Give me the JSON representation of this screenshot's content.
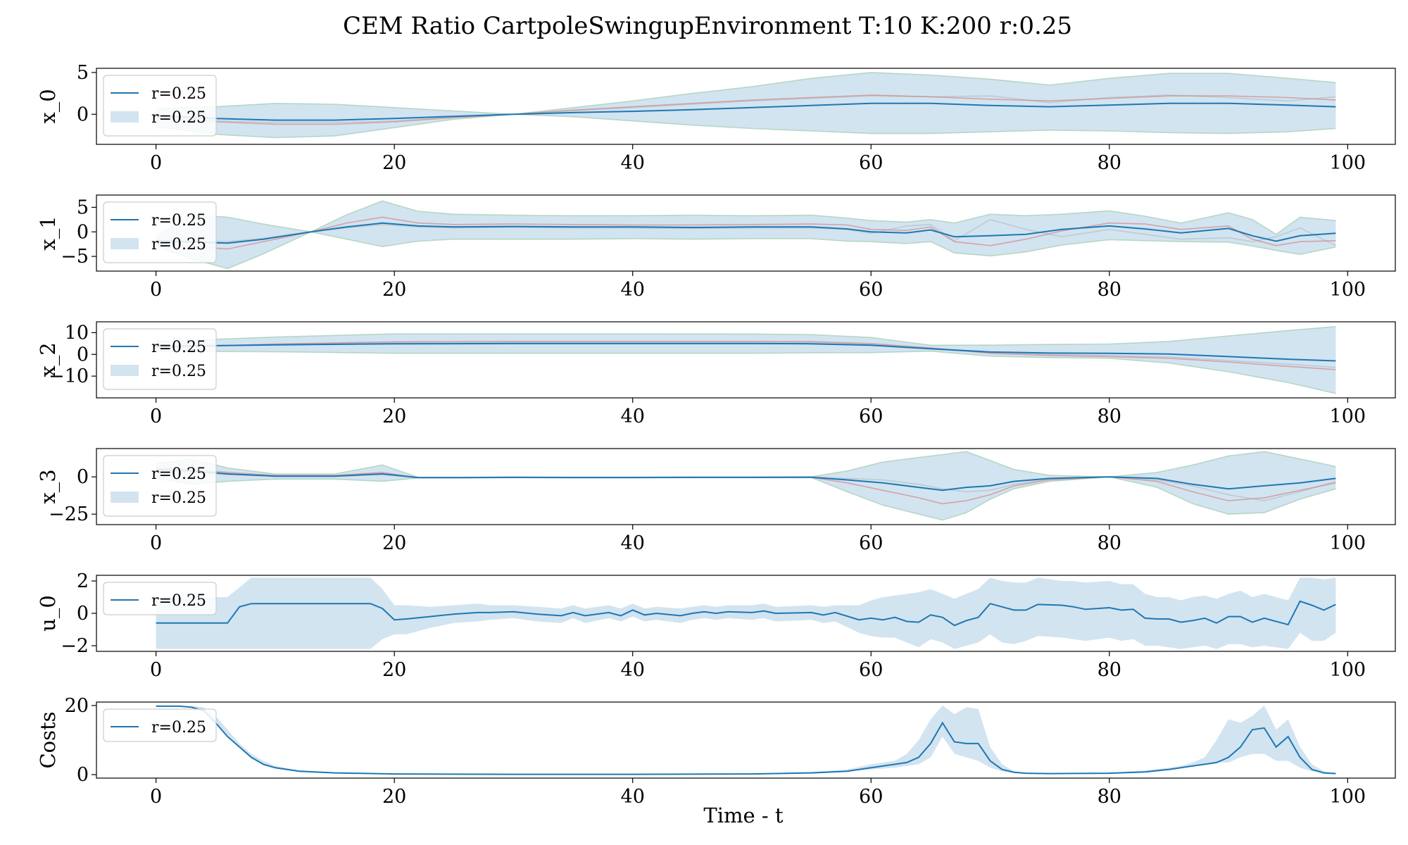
{
  "figure": {
    "title": "CEM Ratio CartpoleSwingupEnvironment T:10 K:200 r:0.25",
    "xlabel": "Time - t"
  },
  "colors": {
    "mean_line": "#1f77b4",
    "band_fill": "#1f77b4",
    "band_edge": "#8fc39a",
    "sample_line": "#d62728",
    "grey_line": "#9a9a9a"
  },
  "chart_data": [
    {
      "type": "line",
      "ylabel": "x_0",
      "xlim": [
        -5,
        104
      ],
      "ylim": [
        -3.6,
        5.5
      ],
      "x_ticks": [
        0,
        20,
        40,
        60,
        80,
        100
      ],
      "y_ticks": [
        -0.0001,
        0,
        5
      ],
      "y_tick_labels": [
        "",
        "0",
        "5"
      ],
      "legend": {
        "position": "upper-left",
        "entries": [
          "r=0.25",
          "r=0.25"
        ]
      },
      "x": [
        0,
        5,
        10,
        15,
        20,
        25,
        30,
        35,
        40,
        45,
        50,
        55,
        60,
        65,
        70,
        75,
        80,
        85,
        90,
        95,
        99
      ],
      "mean": [
        -0.2,
        -0.5,
        -0.7,
        -0.7,
        -0.5,
        -0.25,
        0,
        0.2,
        0.35,
        0.55,
        0.8,
        1.05,
        1.3,
        1.3,
        1.05,
        0.9,
        1.1,
        1.3,
        1.3,
        1.1,
        0.9
      ],
      "lower": [
        -1.5,
        -2.4,
        -2.8,
        -2.6,
        -1.6,
        -0.6,
        0,
        -0.3,
        -0.8,
        -1.3,
        -1.7,
        -2.0,
        -2.3,
        -2.3,
        -2.1,
        -1.9,
        -2.0,
        -2.2,
        -2.3,
        -2.1,
        -1.7
      ],
      "upper": [
        0.7,
        0.9,
        1.3,
        1.2,
        0.8,
        0.4,
        0,
        0.8,
        1.6,
        2.5,
        3.3,
        4.3,
        5.0,
        4.7,
        4.2,
        3.5,
        4.3,
        4.9,
        4.9,
        4.3,
        3.8
      ],
      "extra_lines": [
        {
          "color": "sample",
          "values": [
            -0.5,
            -0.9,
            -1.2,
            -1.2,
            -0.9,
            -0.4,
            0,
            0.5,
            0.9,
            1.3,
            1.7,
            2.0,
            2.3,
            2.1,
            1.8,
            1.6,
            1.9,
            2.2,
            2.2,
            2.0,
            1.7
          ]
        },
        {
          "color": "grey",
          "values": [
            -0.4,
            -0.8,
            -1.0,
            -1.0,
            -0.8,
            -0.35,
            0,
            0.4,
            0.8,
            1.2,
            1.6,
            1.9,
            2.2,
            2.1,
            2.2,
            1.4,
            2.0,
            2.3,
            2.0,
            1.6,
            2.1
          ]
        }
      ]
    },
    {
      "type": "line",
      "ylabel": "x_1",
      "xlim": [
        -5,
        104
      ],
      "ylim": [
        -8,
        7.5
      ],
      "x_ticks": [
        0,
        20,
        40,
        60,
        80,
        100
      ],
      "y_ticks": [
        -5,
        0,
        5
      ],
      "y_tick_labels": [
        "−5",
        "0",
        "5"
      ],
      "legend": {
        "position": "upper-left",
        "entries": [
          "r=0.25",
          "r=0.25"
        ]
      },
      "x": [
        0,
        3,
        6,
        9,
        13,
        16,
        19,
        22,
        25,
        30,
        35,
        40,
        45,
        50,
        55,
        58,
        60,
        63,
        65,
        67,
        70,
        73,
        76,
        80,
        83,
        86,
        90,
        92,
        94,
        96,
        99
      ],
      "mean": [
        -1.8,
        -2.1,
        -2.3,
        -1.5,
        0,
        1.0,
        1.8,
        1.2,
        1.0,
        1.1,
        1.0,
        1.0,
        0.9,
        1.0,
        1.0,
        0.6,
        0,
        -0.2,
        0.4,
        -1.0,
        -0.8,
        -0.5,
        0.5,
        1.2,
        0.6,
        -0.2,
        0.7,
        -0.8,
        -1.9,
        -0.8,
        -0.3
      ],
      "lower": [
        -3.0,
        -5.5,
        -7.5,
        -4.5,
        0,
        -1.5,
        -3.0,
        -1.9,
        -1.5,
        -1.5,
        -1.5,
        -1.4,
        -1.5,
        -1.4,
        -1.4,
        -1.9,
        -2.0,
        -2.4,
        -2.0,
        -4.3,
        -4.9,
        -4.1,
        -2.7,
        -1.6,
        -1.8,
        -2.0,
        -2.1,
        -2.9,
        -3.8,
        -4.6,
        -3.1
      ],
      "upper": [
        -0.8,
        3.5,
        3.0,
        1.6,
        0,
        3.5,
        6.3,
        4.2,
        3.6,
        3.4,
        3.3,
        3.3,
        3.4,
        3.3,
        3.4,
        2.8,
        2.3,
        2.0,
        2.5,
        1.8,
        3.6,
        3.3,
        3.6,
        4.3,
        3.2,
        1.8,
        3.9,
        2.5,
        -0.5,
        3.0,
        2.3
      ],
      "extra_lines": [
        {
          "color": "sample",
          "values": [
            -2.5,
            -3.0,
            -3.5,
            -2.0,
            0,
            1.8,
            3.0,
            1.8,
            1.5,
            1.6,
            1.5,
            1.4,
            1.4,
            1.5,
            1.6,
            1.4,
            0.5,
            0.3,
            1.0,
            -2.0,
            -2.8,
            -1.5,
            0.2,
            1.8,
            1.6,
            0.5,
            1.2,
            -1.5,
            -2.8,
            -2.0,
            -1.8
          ]
        },
        {
          "color": "grey",
          "values": [
            -1.5,
            -1.8,
            -2.0,
            -1.3,
            0,
            0.8,
            1.5,
            1.0,
            0.8,
            0.9,
            0.8,
            0.8,
            0.7,
            0.8,
            0.8,
            0.5,
            -0.3,
            1.2,
            1.5,
            -1.8,
            2.5,
            0.5,
            -1.0,
            0.5,
            -0.5,
            -1.5,
            -1.2,
            -2.0,
            -1.0,
            0.8,
            -2.8
          ]
        }
      ]
    },
    {
      "type": "line",
      "ylabel": "x_2",
      "xlim": [
        -5,
        104
      ],
      "ylim": [
        -20,
        15
      ],
      "x_ticks": [
        0,
        20,
        40,
        60,
        80,
        100
      ],
      "y_ticks": [
        -10,
        0,
        10
      ],
      "y_tick_labels": [
        "−10",
        "0",
        "10"
      ],
      "legend": {
        "position": "upper-left",
        "entries": [
          "r=0.25",
          "r=0.25"
        ]
      },
      "x": [
        0,
        10,
        20,
        30,
        40,
        50,
        55,
        60,
        65,
        70,
        75,
        80,
        85,
        90,
        95,
        99
      ],
      "mean": [
        3.7,
        4.4,
        4.9,
        5.0,
        5.0,
        5.0,
        4.9,
        4.2,
        2.6,
        1.1,
        0.6,
        0.5,
        0.2,
        -1.0,
        -2.2,
        -3.0
      ],
      "lower": [
        1.5,
        1.2,
        0.5,
        0.5,
        0.5,
        0.5,
        0.7,
        0.8,
        1.5,
        -0.8,
        -1.5,
        -1.8,
        -4.0,
        -8.0,
        -13.0,
        -18.0
      ],
      "upper": [
        6.0,
        8.0,
        9.5,
        9.5,
        9.5,
        9.4,
        9.1,
        7.8,
        4.2,
        4.3,
        4.6,
        4.8,
        6.0,
        8.5,
        11.0,
        12.8
      ],
      "extra_lines": [
        {
          "color": "sample",
          "values": [
            3.0,
            4.8,
            5.8,
            6.0,
            6.0,
            6.0,
            5.9,
            5.0,
            3.0,
            0.5,
            -0.5,
            -1.0,
            -1.8,
            -3.5,
            -5.5,
            -7.0
          ]
        },
        {
          "color": "grey",
          "values": [
            3.2,
            4.5,
            5.3,
            5.5,
            5.5,
            5.5,
            5.4,
            4.6,
            2.8,
            0.8,
            0.0,
            -0.5,
            -1.2,
            -2.8,
            -4.5,
            -6.0
          ]
        }
      ]
    },
    {
      "type": "line",
      "ylabel": "x_3",
      "xlim": [
        -5,
        104
      ],
      "ylim": [
        -32,
        19
      ],
      "x_ticks": [
        0,
        20,
        40,
        60,
        80,
        100
      ],
      "y_ticks": [
        -25,
        0
      ],
      "y_tick_labels": [
        "−25",
        "0"
      ],
      "legend": {
        "position": "upper-left",
        "entries": [
          "r=0.25",
          "r=0.25"
        ]
      },
      "x": [
        0,
        3,
        6,
        10,
        15,
        19,
        22,
        25,
        30,
        35,
        40,
        45,
        50,
        55,
        58,
        61,
        64,
        66,
        68,
        70,
        72,
        75,
        80,
        84,
        87,
        90,
        93,
        96,
        99
      ],
      "mean": [
        5,
        4,
        2,
        0.5,
        0.5,
        2,
        -0.5,
        -0.5,
        -0.3,
        -0.4,
        -0.4,
        -0.3,
        -0.3,
        -0.2,
        -2,
        -4,
        -7,
        -9,
        -7,
        -6,
        -3,
        -1,
        0,
        -1,
        -5,
        -8,
        -6,
        -4,
        -1
      ],
      "lower": [
        -1,
        -5,
        -3,
        -1.5,
        -1.5,
        -3,
        -0.7,
        -0.7,
        -0.5,
        -0.6,
        -0.6,
        -0.5,
        -0.5,
        -0.5,
        -10,
        -19,
        -25,
        -29,
        -24,
        -15,
        -8,
        -3,
        0,
        -7,
        -18,
        -25,
        -24,
        -15,
        -8
      ],
      "upper": [
        9,
        12,
        6,
        2,
        2,
        8,
        -0.3,
        -0.3,
        -0.1,
        -0.2,
        -0.2,
        -0.1,
        -0.1,
        0.1,
        4,
        10,
        13,
        15,
        17,
        11,
        5,
        1,
        0,
        3,
        8,
        14,
        17,
        12,
        7
      ],
      "extra_lines": [
        {
          "color": "sample",
          "values": [
            6,
            5,
            3,
            1,
            1,
            3,
            -0.6,
            -0.6,
            -0.4,
            -0.5,
            -0.5,
            -0.4,
            -0.4,
            -0.3,
            -4,
            -9,
            -14,
            -18,
            -16,
            -12,
            -6,
            -2,
            0,
            -3,
            -10,
            -16,
            -14,
            -9,
            -4
          ]
        },
        {
          "color": "grey",
          "values": [
            4,
            3,
            1.5,
            0.5,
            0.5,
            1.5,
            -0.4,
            -0.4,
            -0.2,
            -0.3,
            -0.3,
            -0.2,
            -0.2,
            -0.1,
            -1,
            -2,
            -5,
            -8,
            -10,
            -9,
            -5,
            -1.5,
            0,
            -2,
            -6,
            -12,
            -16,
            -10,
            -3
          ]
        }
      ]
    },
    {
      "type": "line",
      "ylabel": "u_0",
      "xlim": [
        -5,
        104
      ],
      "ylim": [
        -2.35,
        2.35
      ],
      "x_ticks": [
        0,
        20,
        40,
        60,
        80,
        100
      ],
      "y_ticks": [
        -2,
        0,
        2
      ],
      "y_tick_labels": [
        "−2",
        "0",
        "2"
      ],
      "legend": {
        "position": "upper-left",
        "entries": [
          "r=0.25"
        ]
      },
      "x": [
        0,
        6,
        7,
        8,
        10,
        14,
        18,
        19,
        20,
        21,
        23,
        25,
        27,
        28,
        30,
        32,
        34,
        35,
        36,
        38,
        39,
        40,
        41,
        42,
        44,
        45,
        46,
        47,
        48,
        50,
        51,
        52,
        55,
        56,
        57,
        59,
        60,
        61,
        62,
        63,
        64,
        65,
        66,
        67,
        68,
        69,
        70,
        71,
        72,
        73,
        74,
        76,
        77,
        78,
        80,
        81,
        82,
        83,
        84,
        85,
        86,
        87,
        88,
        89,
        90,
        91,
        92,
        93,
        95,
        96,
        97,
        98,
        99
      ],
      "mean": [
        -0.6,
        -0.6,
        0.4,
        0.6,
        0.6,
        0.6,
        0.6,
        0.3,
        -0.4,
        -0.35,
        -0.2,
        -0.05,
        0.05,
        0.05,
        0.1,
        -0.05,
        -0.15,
        0.05,
        -0.15,
        0.05,
        -0.15,
        0.2,
        -0.1,
        0.0,
        -0.15,
        0.0,
        0.1,
        0.0,
        0.1,
        0.05,
        0.15,
        0.0,
        0.05,
        -0.1,
        0.05,
        -0.4,
        -0.3,
        -0.4,
        -0.25,
        -0.5,
        -0.55,
        -0.1,
        -0.25,
        -0.75,
        -0.45,
        -0.25,
        0.6,
        0.4,
        0.2,
        0.2,
        0.55,
        0.5,
        0.4,
        0.25,
        0.35,
        0.2,
        0.25,
        -0.3,
        -0.35,
        -0.35,
        -0.55,
        -0.45,
        -0.3,
        -0.6,
        -0.2,
        -0.2,
        -0.55,
        -0.3,
        -0.7,
        0.75,
        0.5,
        0.2,
        0.55
      ],
      "lower": [
        -2.2,
        -2.2,
        -2.2,
        -2.2,
        -2.2,
        -2.2,
        -2.2,
        -1.6,
        -1.3,
        -1.3,
        -0.9,
        -0.6,
        -0.5,
        -0.4,
        -0.3,
        -0.5,
        -0.6,
        -0.3,
        -0.6,
        -0.3,
        -0.5,
        -0.2,
        -0.5,
        -0.4,
        -0.6,
        -0.4,
        -0.3,
        -0.4,
        -0.3,
        -0.4,
        -0.3,
        -0.5,
        -0.4,
        -0.6,
        -0.5,
        -1.2,
        -1.4,
        -1.5,
        -1.5,
        -1.8,
        -2.1,
        -1.6,
        -1.8,
        -2.2,
        -2.0,
        -1.8,
        -1.3,
        -1.8,
        -1.9,
        -1.7,
        -1.4,
        -1.5,
        -1.6,
        -1.7,
        -1.5,
        -1.7,
        -1.6,
        -2.0,
        -2.0,
        -2.1,
        -2.2,
        -2.1,
        -2.0,
        -2.2,
        -1.9,
        -1.9,
        -2.1,
        -2.0,
        -2.2,
        -1.2,
        -1.7,
        -1.7,
        -1.2
      ],
      "upper": [
        1.0,
        1.0,
        1.6,
        2.2,
        2.2,
        2.2,
        2.2,
        1.5,
        0.5,
        0.5,
        0.4,
        0.5,
        0.6,
        0.5,
        0.5,
        0.4,
        0.3,
        0.5,
        0.3,
        0.5,
        0.3,
        0.6,
        0.3,
        0.4,
        0.3,
        0.4,
        0.5,
        0.4,
        0.5,
        0.5,
        0.6,
        0.4,
        0.5,
        0.4,
        0.5,
        0.5,
        0.8,
        1.0,
        1.1,
        1.2,
        1.3,
        1.5,
        1.2,
        0.9,
        1.2,
        1.5,
        2.2,
        2.0,
        1.9,
        1.9,
        2.2,
        2.0,
        2.0,
        1.9,
        2.0,
        1.8,
        1.8,
        1.2,
        1.0,
        1.0,
        0.8,
        1.0,
        1.1,
        0.9,
        1.2,
        1.4,
        1.0,
        1.2,
        0.8,
        2.2,
        2.2,
        2.1,
        2.2
      ],
      "extra_lines": []
    },
    {
      "type": "line",
      "ylabel": "Costs",
      "xlim": [
        -5,
        104
      ],
      "ylim": [
        -1,
        21
      ],
      "x_ticks": [
        0,
        20,
        40,
        60,
        80,
        100
      ],
      "y_ticks": [
        0,
        20
      ],
      "y_tick_labels": [
        "0",
        "20"
      ],
      "legend": {
        "position": "upper-left",
        "entries": [
          "r=0.25"
        ]
      },
      "x": [
        0,
        2,
        3,
        4,
        5,
        6,
        7,
        8,
        9,
        10,
        12,
        15,
        20,
        30,
        40,
        50,
        55,
        58,
        60,
        62,
        63,
        64,
        65,
        66,
        67,
        68,
        69,
        70,
        71,
        72,
        73,
        75,
        80,
        83,
        85,
        86,
        87,
        88,
        89,
        90,
        91,
        92,
        93,
        94,
        95,
        96,
        97,
        98,
        99
      ],
      "mean": [
        19.8,
        19.8,
        19.5,
        18.5,
        15,
        11,
        8,
        5,
        3,
        2,
        1,
        0.5,
        0.2,
        0.1,
        0.1,
        0.2,
        0.5,
        1,
        2,
        3,
        3.5,
        5,
        9,
        15,
        9.5,
        9,
        9,
        4,
        1.5,
        0.7,
        0.4,
        0.3,
        0.4,
        0.8,
        1.5,
        2,
        2.5,
        3,
        3.5,
        5,
        8,
        13,
        13.5,
        8,
        11,
        5,
        1.5,
        0.5,
        0.3
      ],
      "lower": [
        19.8,
        19.8,
        19.5,
        18.5,
        15,
        11,
        8,
        5,
        3,
        2,
        1,
        0.5,
        0.2,
        0.1,
        0.1,
        0.2,
        0.5,
        1,
        1.5,
        2,
        2.5,
        3,
        5,
        11,
        6,
        5,
        4,
        2,
        1,
        0.5,
        0.3,
        0.3,
        0.4,
        0.8,
        1.5,
        2,
        2.5,
        3,
        3.5,
        3.5,
        5,
        6,
        6,
        4,
        4,
        2,
        1,
        0.5,
        0.3
      ],
      "upper": [
        19.8,
        19.8,
        19.8,
        19.5,
        17,
        13,
        9,
        6,
        4,
        2.5,
        1.3,
        0.7,
        0.3,
        0.1,
        0.1,
        0.3,
        0.8,
        1.5,
        3,
        4,
        6,
        10,
        16,
        20,
        17.5,
        19.5,
        19,
        8,
        3,
        1,
        0.5,
        0.4,
        0.6,
        1.2,
        2,
        2.5,
        3.5,
        5,
        10,
        16,
        15,
        17,
        20,
        13,
        16,
        8,
        3,
        1,
        0.5
      ],
      "extra_lines": []
    }
  ]
}
